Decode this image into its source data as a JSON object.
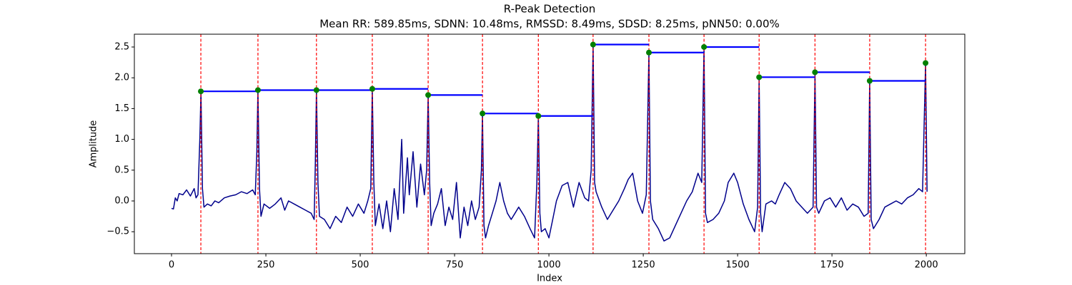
{
  "chart_data": {
    "type": "line",
    "title": "R-Peak Detection",
    "subtitle": "Mean RR: 589.85ms, SDNN: 10.48ms, RMSSD: 8.49ms, SDSD: 8.25ms, pNN50: 0.00%",
    "xlabel": "Index",
    "ylabel": "Amplitude",
    "xlim": [
      -98.5,
      2102
    ],
    "ylim": [
      -0.856,
      2.708
    ],
    "xticks": [
      0,
      250,
      500,
      750,
      1000,
      1250,
      1500,
      1750,
      2000
    ],
    "yticks": [
      {
        "value": -0.5,
        "label": "−0.5"
      },
      {
        "value": 0,
        "label": "0.0"
      },
      0.5,
      {
        "value": 1,
        "label": "1.0"
      },
      1.5,
      {
        "value": 2,
        "label": "2.0"
      },
      2.5
    ],
    "signal": {
      "color": "#00008b",
      "x": [
        0,
        5,
        10,
        15,
        20,
        30,
        40,
        50,
        60,
        65,
        70,
        75,
        78,
        82,
        86,
        95,
        105,
        115,
        125,
        140,
        155,
        170,
        185,
        200,
        215,
        222,
        226,
        229,
        233,
        237,
        245,
        260,
        275,
        290,
        300,
        310,
        325,
        340,
        355,
        370,
        378,
        381,
        384,
        388,
        392,
        405,
        420,
        435,
        450,
        465,
        480,
        495,
        510,
        520,
        528,
        532,
        536,
        540,
        550,
        560,
        570,
        580,
        590,
        600,
        610,
        615,
        625,
        630,
        640,
        650,
        660,
        670,
        676,
        680,
        684,
        688,
        695,
        705,
        715,
        725,
        735,
        745,
        755,
        765,
        775,
        785,
        795,
        805,
        815,
        821,
        824,
        828,
        832,
        840,
        850,
        860,
        870,
        880,
        890,
        900,
        910,
        920,
        935,
        950,
        962,
        968,
        972,
        976,
        980,
        990,
        1000,
        1010,
        1020,
        1035,
        1050,
        1065,
        1080,
        1095,
        1105,
        1112,
        1117,
        1121,
        1125,
        1140,
        1155,
        1170,
        1185,
        1200,
        1210,
        1222,
        1235,
        1248,
        1258,
        1265,
        1269,
        1275,
        1290,
        1305,
        1320,
        1335,
        1350,
        1365,
        1380,
        1395,
        1405,
        1411,
        1415,
        1420,
        1435,
        1450,
        1465,
        1475,
        1490,
        1500,
        1515,
        1530,
        1545,
        1553,
        1557,
        1561,
        1565,
        1575,
        1590,
        1600,
        1610,
        1625,
        1640,
        1655,
        1670,
        1685,
        1700,
        1705,
        1709,
        1715,
        1730,
        1745,
        1760,
        1775,
        1790,
        1805,
        1820,
        1835,
        1846,
        1850,
        1854,
        1860,
        1875,
        1890,
        1905,
        1920,
        1935,
        1950,
        1965,
        1980,
        1990,
        1998,
        2002
      ],
      "values": [
        -0.12,
        -0.13,
        0.05,
        0.0,
        0.12,
        0.1,
        0.18,
        0.08,
        0.2,
        0.05,
        0.1,
        1.0,
        1.78,
        0.2,
        -0.1,
        -0.05,
        -0.08,
        0.0,
        -0.03,
        0.05,
        0.08,
        0.1,
        0.15,
        0.12,
        0.18,
        0.1,
        0.8,
        1.8,
        0.2,
        -0.25,
        -0.05,
        -0.12,
        -0.05,
        0.05,
        -0.15,
        0.0,
        -0.05,
        -0.1,
        -0.15,
        -0.2,
        -0.3,
        0.6,
        1.8,
        0.3,
        -0.25,
        -0.3,
        -0.45,
        -0.25,
        -0.35,
        -0.1,
        -0.25,
        -0.05,
        -0.2,
        0.0,
        0.2,
        1.82,
        0.3,
        -0.4,
        -0.05,
        -0.45,
        0.0,
        -0.5,
        0.2,
        -0.3,
        1.0,
        -0.2,
        0.7,
        0.1,
        0.8,
        -0.1,
        0.6,
        0.1,
        0.5,
        1.72,
        0.3,
        -0.4,
        -0.2,
        -0.05,
        0.2,
        -0.4,
        -0.1,
        -0.3,
        0.3,
        -0.6,
        -0.1,
        -0.4,
        0.0,
        -0.3,
        -0.1,
        0.5,
        1.42,
        -0.4,
        -0.6,
        -0.4,
        -0.2,
        0.0,
        0.3,
        0.0,
        -0.2,
        -0.3,
        -0.2,
        -0.1,
        -0.25,
        -0.45,
        -0.6,
        0.3,
        1.38,
        -0.2,
        -0.5,
        -0.45,
        -0.6,
        -0.3,
        0.0,
        0.25,
        0.3,
        -0.1,
        0.3,
        0.05,
        0.0,
        0.5,
        2.54,
        0.3,
        0.15,
        -0.1,
        -0.3,
        -0.15,
        0.0,
        0.2,
        0.35,
        0.45,
        0.0,
        -0.2,
        0.1,
        2.41,
        0.0,
        -0.3,
        -0.45,
        -0.65,
        -0.6,
        -0.4,
        -0.2,
        0.0,
        0.15,
        0.45,
        0.3,
        2.5,
        -0.2,
        -0.35,
        -0.3,
        -0.2,
        0.0,
        0.3,
        0.45,
        0.3,
        -0.05,
        -0.3,
        -0.5,
        -0.1,
        2.01,
        -0.2,
        -0.5,
        -0.05,
        0.0,
        -0.05,
        0.1,
        0.3,
        0.2,
        0.0,
        -0.1,
        -0.2,
        -0.1,
        2.09,
        -0.1,
        -0.2,
        0.0,
        0.05,
        -0.1,
        0.05,
        -0.15,
        -0.05,
        -0.1,
        -0.25,
        -0.2,
        1.95,
        -0.3,
        -0.45,
        -0.3,
        -0.1,
        -0.05,
        0.0,
        -0.05,
        0.05,
        0.1,
        0.2,
        0.15,
        2.24,
        0.15
      ]
    },
    "peaks": {
      "color": "#008000",
      "line_color": "#ff0000",
      "segment_color": "#0000ff",
      "x": [
        77.7,
        229,
        384,
        532,
        680,
        824,
        972,
        1117,
        1265,
        1411,
        1557,
        1705,
        1850,
        1998
      ],
      "values": [
        1.78,
        1.8,
        1.8,
        1.82,
        1.72,
        1.42,
        1.38,
        2.54,
        2.41,
        2.5,
        2.01,
        2.09,
        1.95,
        2.24
      ]
    }
  }
}
